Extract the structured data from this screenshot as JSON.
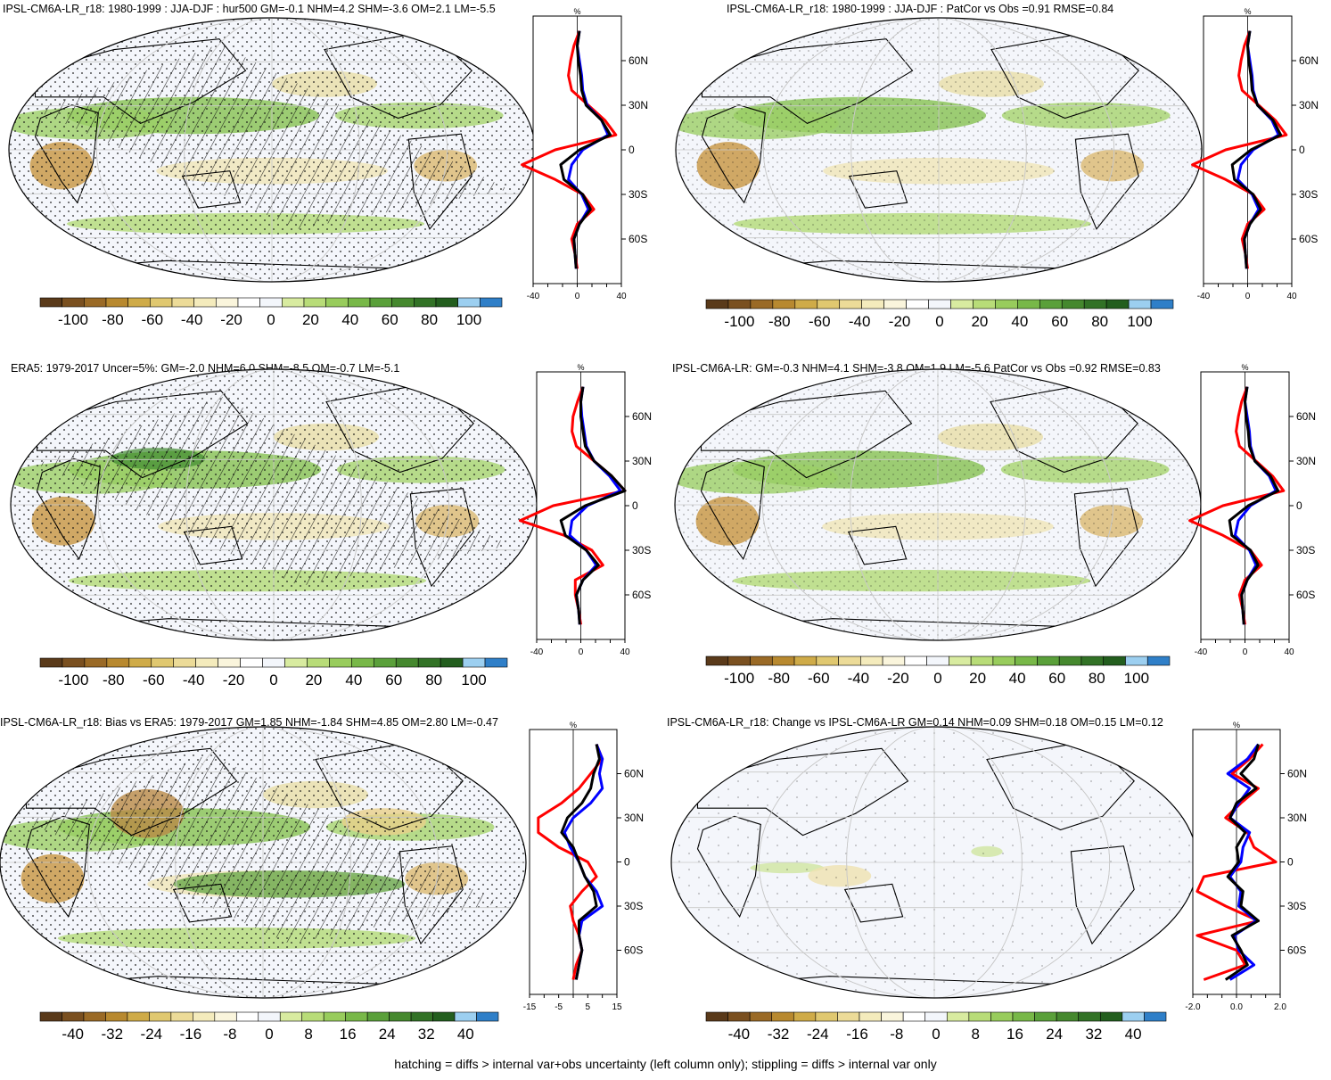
{
  "footer": "hatching = diffs > internal var+obs uncertainty (left column only); stippling = diffs > internal var only",
  "colors": {
    "brown_green_scale": [
      "#5a3a1a",
      "#7a5020",
      "#9a6a26",
      "#b8892f",
      "#cfab48",
      "#e0c870",
      "#ecdb98",
      "#f4ebbc",
      "#faf5dc",
      "#ffffff",
      "#f3f6fb",
      "#d8eba0",
      "#b8dc78",
      "#98cc5c",
      "#78b848",
      "#5aa03a",
      "#45882e",
      "#327226",
      "#235e1e",
      "#9ccff0",
      "#2f7fc8"
    ],
    "model_line": "#000000",
    "obs_line": "#ff0000",
    "ensemble_line": "#0000ff"
  },
  "panels": [
    {
      "title": "IPSL-CM6A-LR_r18: 1980-1999 : JJA-DJF : hur500 GM=-0.1 NHM=4.2 SHM=-3.6 OM=2.1 LM=-5.5",
      "profile_unit": "%",
      "profile_xticks": [
        "-40",
        "0",
        "40"
      ],
      "lat_labels": [
        "60N",
        "30N",
        "0",
        "30S",
        "60S"
      ],
      "colorbar_labels": [
        "-100",
        "-80",
        "-60",
        "-40",
        "-20",
        "0",
        "20",
        "40",
        "60",
        "80",
        "100"
      ]
    },
    {
      "title": "IPSL-CM6A-LR_r18: 1980-1999 : JJA-DJF : PatCor vs Obs =0.91 RMSE=0.84",
      "profile_unit": "%",
      "profile_xticks": [
        "-40",
        "0",
        "40"
      ],
      "lat_labels": [
        "60N",
        "30N",
        "0",
        "30S",
        "60S"
      ],
      "colorbar_labels": [
        "-100",
        "-80",
        "-60",
        "-40",
        "-20",
        "0",
        "20",
        "40",
        "60",
        "80",
        "100"
      ]
    },
    {
      "title": "ERA5: 1979-2017 Uncer=5%: GM=-2.0 NHM=6.0 SHM=-8.5 OM=-0.7 LM=-5.1",
      "profile_unit": "%",
      "profile_xticks": [
        "-40",
        "0",
        "40"
      ],
      "lat_labels": [
        "60N",
        "30N",
        "0",
        "30S",
        "60S"
      ],
      "colorbar_labels": [
        "-100",
        "-80",
        "-60",
        "-40",
        "-20",
        "0",
        "20",
        "40",
        "60",
        "80",
        "100"
      ]
    },
    {
      "title": "IPSL-CM6A-LR: GM=-0.3 NHM=4.1 SHM=-3.8 OM=1.9 LM=-5.6 PatCor vs Obs =0.92 RMSE=0.83",
      "profile_unit": "%",
      "profile_xticks": [
        "-40",
        "0",
        "40"
      ],
      "lat_labels": [
        "60N",
        "30N",
        "0",
        "30S",
        "60S"
      ],
      "colorbar_labels": [
        "-100",
        "-80",
        "-60",
        "-40",
        "-20",
        "0",
        "20",
        "40",
        "60",
        "80",
        "100"
      ]
    },
    {
      "title": "IPSL-CM6A-LR_r18: Bias vs ERA5: 1979-2017 GM=1.85 NHM=-1.84 SHM=4.85 OM=2.80 LM=-0.47",
      "profile_unit": "%",
      "profile_xticks": [
        "-15",
        "-5",
        "5",
        "15"
      ],
      "lat_labels": [
        "60N",
        "30N",
        "0",
        "30S",
        "60S"
      ],
      "colorbar_labels": [
        "-40",
        "-32",
        "-24",
        "-16",
        "-8",
        "0",
        "8",
        "16",
        "24",
        "32",
        "40"
      ]
    },
    {
      "title": "IPSL-CM6A-LR_r18: Change vs IPSL-CM6A-LR GM=0.14 NHM=0.09 SHM=0.18 OM=0.15 LM=0.12",
      "profile_unit": "%",
      "profile_xticks": [
        "-2.0",
        "0.0",
        "2.0"
      ],
      "lat_labels": [
        "60N",
        "30N",
        "0",
        "30S",
        "60S"
      ],
      "colorbar_labels": [
        "-40",
        "-32",
        "-24",
        "-16",
        "-8",
        "0",
        "8",
        "16",
        "24",
        "32",
        "40"
      ]
    }
  ],
  "chart_data": [
    {
      "type": "line",
      "title": "IPSL-CM6A-LR_r18: 1980-1999 : JJA-DJF : hur500 GM=-0.1 NHM=4.2 SHM=-3.6 OM=2.1 LM=-5.5",
      "xlabel": "%",
      "xlim": [
        -40,
        40
      ],
      "ylim": [
        -90,
        90
      ],
      "lat": [
        80,
        70,
        60,
        50,
        40,
        30,
        20,
        10,
        0,
        -10,
        -20,
        -30,
        -40,
        -50,
        -60,
        -70,
        -80
      ],
      "series": [
        {
          "values": [
            2,
            0,
            1,
            3,
            4,
            8,
            22,
            30,
            2,
            -15,
            -12,
            5,
            12,
            2,
            -3,
            -2,
            -1
          ]
        },
        {
          "values": [
            2,
            -3,
            -6,
            -8,
            -5,
            10,
            25,
            35,
            -20,
            -50,
            -20,
            5,
            15,
            0,
            -5,
            -2,
            0
          ]
        },
        {
          "values": [
            2,
            0,
            2,
            4,
            5,
            9,
            22,
            28,
            5,
            -5,
            -8,
            4,
            10,
            2,
            -3,
            -2,
            -1
          ]
        }
      ]
    },
    {
      "type": "line",
      "title": "IPSL-CM6A-LR_r18: 1980-1999 : JJA-DJF : PatCor vs Obs =0.91 RMSE=0.84",
      "xlabel": "%",
      "xlim": [
        -40,
        40
      ],
      "ylim": [
        -90,
        90
      ],
      "lat": [
        80,
        70,
        60,
        50,
        40,
        30,
        20,
        10,
        0,
        -10,
        -20,
        -30,
        -40,
        -50,
        -60,
        -70,
        -80
      ],
      "series": [
        {
          "values": [
            2,
            0,
            1,
            3,
            4,
            9,
            23,
            30,
            3,
            -14,
            -12,
            5,
            12,
            2,
            -3,
            -2,
            -1
          ]
        },
        {
          "values": [
            2,
            -3,
            -6,
            -8,
            -5,
            10,
            25,
            35,
            -20,
            -50,
            -20,
            5,
            15,
            0,
            -5,
            -2,
            0
          ]
        },
        {
          "values": [
            2,
            0,
            2,
            4,
            5,
            9,
            22,
            28,
            5,
            -6,
            -9,
            4,
            10,
            2,
            -3,
            -2,
            -1
          ]
        }
      ]
    },
    {
      "type": "line",
      "title": "ERA5: 1979-2017 Uncer=5%: GM=-2.0 NHM=6.0 SHM=-8.5 OM=-0.7 LM=-5.1",
      "xlabel": "%",
      "xlim": [
        -40,
        40
      ],
      "ylim": [
        -90,
        90
      ],
      "lat": [
        80,
        70,
        60,
        50,
        40,
        30,
        20,
        10,
        0,
        -10,
        -20,
        -30,
        -40,
        -50,
        -60,
        -70,
        -80
      ],
      "series": [
        {
          "values": [
            2,
            0,
            0,
            2,
            4,
            12,
            28,
            40,
            4,
            -18,
            -14,
            5,
            16,
            2,
            -4,
            -2,
            -1
          ]
        },
        {
          "values": [
            2,
            -3,
            -7,
            -8,
            -4,
            12,
            28,
            40,
            -25,
            -55,
            -15,
            10,
            20,
            -5,
            -5,
            -2,
            0
          ]
        },
        {
          "values": [
            2,
            0,
            1,
            3,
            5,
            12,
            26,
            36,
            6,
            -8,
            -10,
            5,
            14,
            2,
            -4,
            -2,
            -1
          ]
        }
      ]
    },
    {
      "type": "line",
      "title": "IPSL-CM6A-LR: GM=-0.3 NHM=4.1 SHM=-3.8 OM=1.9 LM=-5.6 PatCor vs Obs =0.92 RMSE=0.83",
      "xlabel": "%",
      "xlim": [
        -40,
        40
      ],
      "ylim": [
        -90,
        90
      ],
      "lat": [
        80,
        70,
        60,
        50,
        40,
        30,
        20,
        10,
        0,
        -10,
        -20,
        -30,
        -40,
        -50,
        -60,
        -70,
        -80
      ],
      "series": [
        {
          "values": [
            2,
            0,
            1,
            3,
            4,
            9,
            23,
            30,
            3,
            -14,
            -12,
            5,
            12,
            2,
            -3,
            -2,
            -1
          ]
        },
        {
          "values": [
            2,
            -3,
            -6,
            -8,
            -5,
            10,
            25,
            35,
            -20,
            -50,
            -20,
            5,
            15,
            0,
            -5,
            -2,
            0
          ]
        },
        {
          "values": [
            2,
            0,
            2,
            4,
            5,
            9,
            22,
            28,
            5,
            -6,
            -9,
            4,
            10,
            2,
            -3,
            -2,
            -1
          ]
        }
      ]
    },
    {
      "type": "line",
      "title": "IPSL-CM6A-LR_r18: Bias vs ERA5: 1979-2017 GM=1.85 NHM=-1.84 SHM=4.85 OM=2.80 LM=-0.47",
      "xlabel": "%",
      "xlim": [
        -15,
        15
      ],
      "ylim": [
        -90,
        90
      ],
      "lat": [
        80,
        70,
        60,
        50,
        40,
        30,
        20,
        10,
        0,
        -10,
        -20,
        -30,
        -40,
        -50,
        -60,
        -70,
        -80
      ],
      "series": [
        {
          "values": [
            8,
            9,
            7,
            6,
            3,
            -2,
            -4,
            0,
            2,
            4,
            7,
            8,
            2,
            2,
            3,
            2,
            1
          ]
        },
        {
          "values": [
            8,
            10,
            6,
            2,
            -4,
            -12,
            -12,
            -5,
            5,
            8,
            3,
            -1,
            0,
            2,
            3,
            1,
            0
          ]
        },
        {
          "values": [
            8,
            10,
            9,
            10,
            6,
            0,
            -3,
            -1,
            2,
            4,
            8,
            10,
            3,
            2,
            3,
            2,
            1
          ]
        }
      ]
    },
    {
      "type": "line",
      "title": "IPSL-CM6A-LR_r18: Change vs IPSL-CM6A-LR GM=0.14 NHM=0.09 SHM=0.18 OM=0.15 LM=0.12",
      "xlabel": "%",
      "xlim": [
        -2.0,
        2.0
      ],
      "ylim": [
        -90,
        90
      ],
      "lat": [
        80,
        70,
        60,
        50,
        40,
        30,
        20,
        10,
        0,
        -10,
        -20,
        -30,
        -40,
        -50,
        -60,
        -70,
        -80
      ],
      "series": [
        {
          "values": [
            1.0,
            0.8,
            0.2,
            0.9,
            0.0,
            -0.3,
            0.4,
            0.0,
            0.1,
            -0.4,
            0.3,
            0.2,
            1.0,
            -0.2,
            0.2,
            0.5,
            -0.5
          ]
        },
        {
          "values": [
            1.2,
            0.6,
            -0.2,
            1.0,
            0.2,
            -0.5,
            0.5,
            0.8,
            1.8,
            -1.5,
            -1.8,
            -0.5,
            1.0,
            -1.8,
            0.0,
            0.4,
            -1.5
          ]
        },
        {
          "values": [
            1.0,
            0.5,
            -0.4,
            0.6,
            0.1,
            -0.3,
            0.6,
            0.3,
            0.2,
            -0.3,
            0.2,
            0.1,
            0.9,
            -0.1,
            0.1,
            0.8,
            -0.3
          ]
        }
      ]
    }
  ]
}
